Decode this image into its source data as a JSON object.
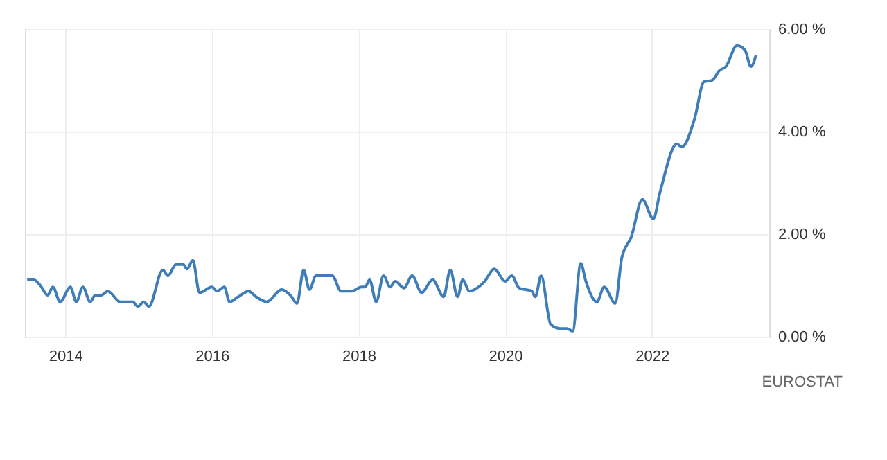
{
  "chart_data": {
    "type": "line",
    "x": [
      2013.48,
      2013.57,
      2013.66,
      2013.76,
      2013.83,
      2013.93,
      2014.07,
      2014.15,
      2014.24,
      2014.34,
      2014.41,
      2014.49,
      2014.58,
      2014.75,
      2014.92,
      2014.99,
      2015.07,
      2015.14,
      2015.33,
      2015.4,
      2015.51,
      2015.61,
      2015.66,
      2015.74,
      2015.83,
      2016.0,
      2016.07,
      2016.17,
      2016.24,
      2016.36,
      2016.5,
      2016.6,
      2016.75,
      2016.95,
      2017.07,
      2017.16,
      2017.25,
      2017.33,
      2017.42,
      2017.64,
      2017.76,
      2017.91,
      2018.04,
      2018.09,
      2018.15,
      2018.24,
      2018.34,
      2018.43,
      2018.5,
      2018.62,
      2018.73,
      2018.86,
      2019.01,
      2019.16,
      2019.25,
      2019.35,
      2019.42,
      2019.51,
      2019.72,
      2019.85,
      2020.0,
      2020.09,
      2020.19,
      2020.36,
      2020.41,
      2020.49,
      2020.62,
      2020.75,
      2020.84,
      2020.92,
      2021.03,
      2021.1,
      2021.25,
      2021.35,
      2021.5,
      2021.59,
      2021.72,
      2021.87,
      2022.02,
      2022.11,
      2022.34,
      2022.41,
      2022.58,
      2022.71,
      2022.82,
      2022.92,
      2023.01,
      2023.16,
      2023.27,
      2023.35,
      2023.42
    ],
    "series": [
      {
        "color": "#3f7db8",
        "values": [
          1.11,
          1.11,
          1.0,
          0.81,
          0.97,
          0.68,
          0.97,
          0.68,
          0.97,
          0.68,
          0.81,
          0.81,
          0.89,
          0.68,
          0.68,
          0.59,
          0.68,
          0.59,
          1.3,
          1.19,
          1.41,
          1.41,
          1.32,
          1.49,
          0.86,
          0.97,
          0.89,
          0.97,
          0.68,
          0.78,
          0.89,
          0.78,
          0.68,
          0.92,
          0.81,
          0.65,
          1.3,
          0.92,
          1.19,
          1.19,
          0.89,
          0.89,
          0.97,
          0.97,
          1.11,
          0.68,
          1.19,
          0.97,
          1.08,
          0.95,
          1.19,
          0.86,
          1.11,
          0.78,
          1.3,
          0.78,
          1.11,
          0.89,
          1.08,
          1.32,
          1.08,
          1.19,
          0.95,
          0.89,
          0.78,
          1.19,
          0.24,
          0.16,
          0.16,
          0.11,
          1.43,
          1.08,
          0.68,
          0.97,
          0.65,
          1.54,
          1.95,
          2.68,
          2.3,
          2.81,
          3.76,
          3.7,
          4.24,
          4.97,
          5.0,
          5.19,
          5.27,
          5.68,
          5.59,
          5.27,
          5.49
        ]
      }
    ],
    "xlim": [
      2013.45,
      2023.6
    ],
    "xticks": [
      2014,
      2016,
      2018,
      2020,
      2022
    ],
    "ylim": [
      0,
      6
    ],
    "yticks": [
      {
        "value": 0,
        "label": "0.00 %"
      },
      {
        "value": 2,
        "label": "2.00 %"
      },
      {
        "value": 4,
        "label": "4.00 %"
      },
      {
        "value": 6,
        "label": "6.00 %"
      }
    ],
    "grid": true,
    "annotations": [
      "EUROSTAT"
    ]
  }
}
